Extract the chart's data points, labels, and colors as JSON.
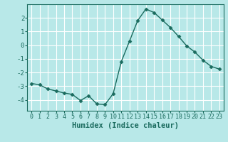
{
  "x": [
    0,
    1,
    2,
    3,
    4,
    5,
    6,
    7,
    8,
    9,
    10,
    11,
    12,
    13,
    14,
    15,
    16,
    17,
    18,
    19,
    20,
    21,
    22,
    23
  ],
  "y": [
    -2.8,
    -2.9,
    -3.2,
    -3.35,
    -3.5,
    -3.6,
    -4.05,
    -3.7,
    -4.3,
    -4.35,
    -3.55,
    -1.2,
    0.3,
    1.8,
    2.65,
    2.4,
    1.85,
    1.3,
    0.65,
    -0.05,
    -0.5,
    -1.1,
    -1.55,
    -1.75
  ],
  "line_color": "#1a6b5e",
  "marker": "D",
  "marker_size": 2.5,
  "bg_color": "#b8e8e8",
  "grid_color": "#d4f0f0",
  "xlabel": "Humidex (Indice chaleur)",
  "xlim": [
    -0.5,
    23.5
  ],
  "ylim": [
    -4.8,
    3.0
  ],
  "yticks": [
    -4,
    -3,
    -2,
    -1,
    0,
    1,
    2
  ],
  "tick_color": "#1a6b5e",
  "xlabel_fontsize": 7.5,
  "tick_fontsize": 6
}
